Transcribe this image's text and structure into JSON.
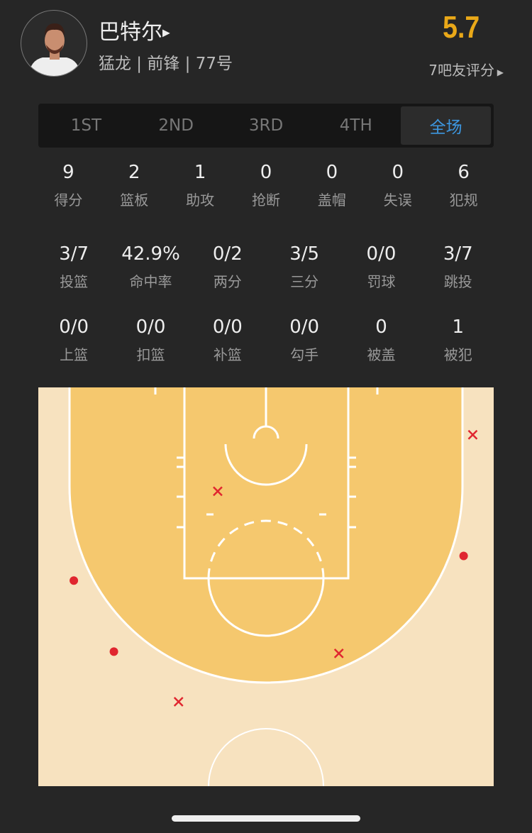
{
  "player": {
    "name": "巴特尔",
    "team_info": "猛龙 | 前锋 | 77号",
    "rating": "5.7",
    "rating_label": "7吧友评分"
  },
  "tabs": [
    {
      "label": "1ST"
    },
    {
      "label": "2ND"
    },
    {
      "label": "3RD"
    },
    {
      "label": "4TH"
    },
    {
      "label": "全场",
      "active": true
    }
  ],
  "basic_stats": [
    {
      "v": "9",
      "l": "得分"
    },
    {
      "v": "2",
      "l": "篮板"
    },
    {
      "v": "1",
      "l": "助攻"
    },
    {
      "v": "0",
      "l": "抢断"
    },
    {
      "v": "0",
      "l": "盖帽"
    },
    {
      "v": "0",
      "l": "失误"
    },
    {
      "v": "6",
      "l": "犯规"
    }
  ],
  "shooting_stats": [
    {
      "v": "3/7",
      "l": "投篮"
    },
    {
      "v": "42.9%",
      "l": "命中率"
    },
    {
      "v": "0/2",
      "l": "两分"
    },
    {
      "v": "3/5",
      "l": "三分"
    },
    {
      "v": "0/0",
      "l": "罚球"
    },
    {
      "v": "3/7",
      "l": "跳投"
    }
  ],
  "shot_type_stats": [
    {
      "v": "0/0",
      "l": "上篮"
    },
    {
      "v": "0/0",
      "l": "扣篮"
    },
    {
      "v": "0/0",
      "l": "补篮"
    },
    {
      "v": "0/0",
      "l": "勾手"
    },
    {
      "v": "0",
      "l": "被盖"
    },
    {
      "v": "1",
      "l": "被犯"
    }
  ],
  "colors": {
    "accent": "#3d97e0",
    "rating": "#e9a818",
    "shot": "#e0262f",
    "paint": "#f5c86e",
    "floor": "#f7e2bf"
  },
  "shot_chart": {
    "units": "feet from basket-center line (x) and baseline (y)",
    "made": [
      {
        "x": -21.1,
        "y": 21.2
      },
      {
        "x": -16.7,
        "y": 29.0
      },
      {
        "x": 21.7,
        "y": 18.5
      }
    ],
    "missed": [
      {
        "x": -5.3,
        "y": 11.4
      },
      {
        "x": 22.7,
        "y": 5.2
      },
      {
        "x": 8.0,
        "y": 29.2
      },
      {
        "x": -9.6,
        "y": 34.5
      }
    ]
  }
}
